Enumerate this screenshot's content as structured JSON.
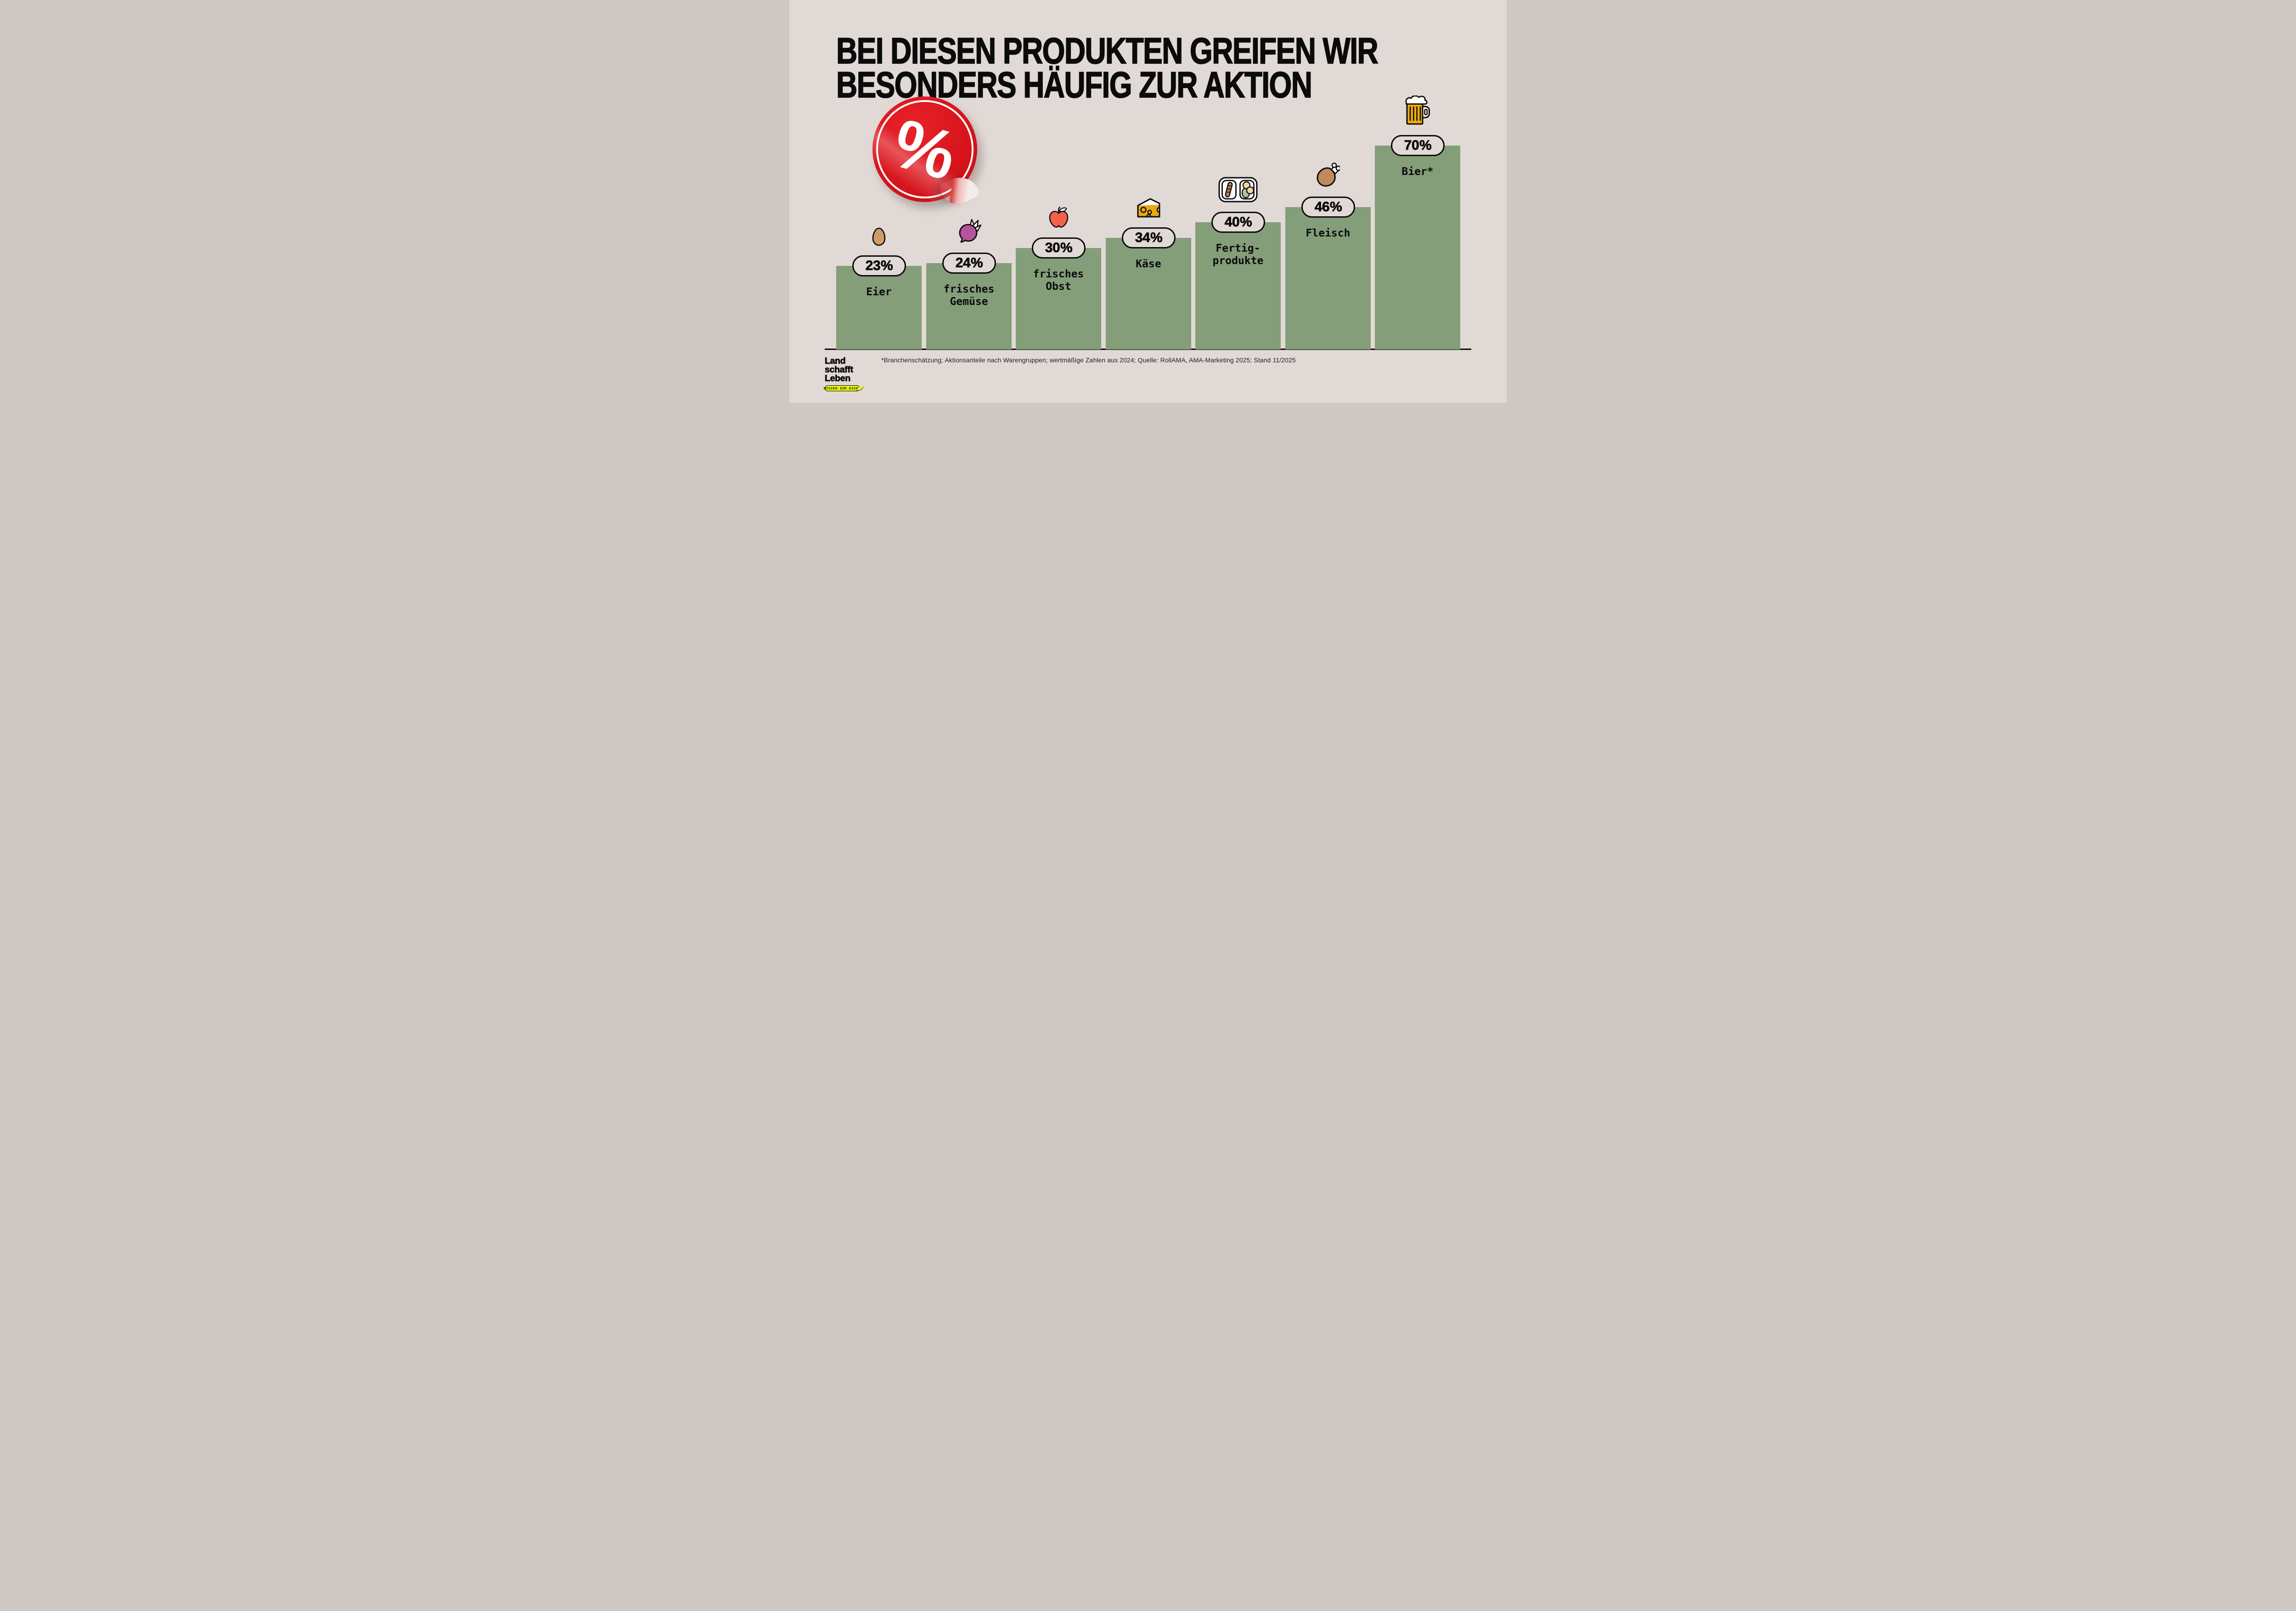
{
  "title": {
    "line1": "BEI DIESEN PRODUKTEN GREIFEN WIR",
    "line2": "BESONDERS HÄUFIG ZUR AKTION"
  },
  "sticker": {
    "symbol": "%"
  },
  "chart_data": {
    "type": "bar",
    "title": "BEI DIESEN PRODUKTEN GREIFEN WIR BESONDERS HÄUFIG ZUR AKTION",
    "unit": "%",
    "categories": [
      "Eier",
      "frisches Gemüse",
      "frisches Obst",
      "Käse",
      "Fertigprodukte",
      "Fleisch",
      "Bier*"
    ],
    "values": [
      23,
      24,
      30,
      34,
      40,
      46,
      70
    ],
    "ylim": [
      0,
      100
    ],
    "grid": false,
    "legend": null,
    "bars": [
      {
        "category": "Eier",
        "value": 23,
        "badge_label": "23 %",
        "label_lines": [
          "Eier"
        ],
        "icon": "egg-icon"
      },
      {
        "category": "frisches Gemüse",
        "value": 24,
        "badge_label": "24 %",
        "label_lines": [
          "frisches",
          "Gemüse"
        ],
        "icon": "beet-icon"
      },
      {
        "category": "frisches Obst",
        "value": 30,
        "badge_label": "30 %",
        "label_lines": [
          "frisches",
          "Obst"
        ],
        "icon": "apple-icon"
      },
      {
        "category": "Käse",
        "value": 34,
        "badge_label": "34 %",
        "label_lines": [
          "Käse"
        ],
        "icon": "cheese-icon"
      },
      {
        "category": "Fertigprodukte",
        "value": 40,
        "badge_label": "40 %",
        "label_lines": [
          "Fertig-",
          "produkte"
        ],
        "icon": "ready-meal-icon"
      },
      {
        "category": "Fleisch",
        "value": 46,
        "badge_label": "46 %",
        "label_lines": [
          "Fleisch"
        ],
        "icon": "drumstick-icon"
      },
      {
        "category": "Bier*",
        "value": 70,
        "badge_label": "70 %",
        "label_lines": [
          "Bier*"
        ],
        "icon": "beer-mug-icon"
      }
    ]
  },
  "footnote": "*Branchenschätzung; Aktionsanteile nach Warengruppen; wertmäßige Zahlen aus 2024; Quelle: RollAMA, AMA-Marketing 2025; Stand 11/2025",
  "logo": {
    "line1": "Land",
    "line2": "schafft",
    "line3": "Leben",
    "tagline": "WISSEN ZUM ESSEN"
  },
  "colors": {
    "background": "#e1d9d5",
    "bar_green": "#839e79",
    "black": "#0b0b0b",
    "sticker_red": "#d8141c",
    "badge_fill": "#e1d9d5",
    "logo_bubble_yellow": "#e4f702",
    "egg_brown": "#d09a6a",
    "beet_magenta": "#b5539c",
    "apple_red": "#f4604a",
    "cheese_yellow": "#e8a713",
    "sausage_brown": "#b98153",
    "peas_cream": "#ecd9a2",
    "blob_green": "#b2c399",
    "meat_brown": "#c08a5c",
    "beer_gold": "#eeab0c"
  }
}
